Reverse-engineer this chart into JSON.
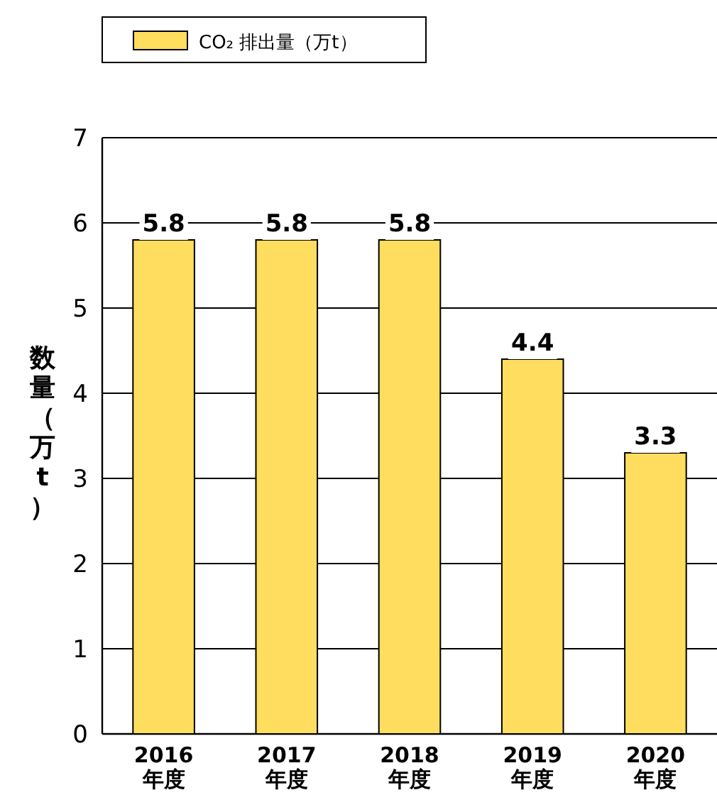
{
  "chart_data": {
    "type": "bar",
    "categories": [
      "2016年度",
      "2017年度",
      "2018年度",
      "2019年度",
      "2020年度"
    ],
    "series": [
      {
        "name": "CO₂ 排出量（万t）",
        "color": "#ffdd5e",
        "values": [
          5.8,
          5.8,
          5.8,
          4.4,
          3.3
        ]
      }
    ],
    "ylabel": "数量（万t）",
    "ylim": [
      0,
      7
    ],
    "yticks": [
      0,
      1,
      2,
      3,
      4,
      5,
      6,
      7
    ],
    "grid": "y",
    "legend": "top left",
    "data_labels": true
  }
}
